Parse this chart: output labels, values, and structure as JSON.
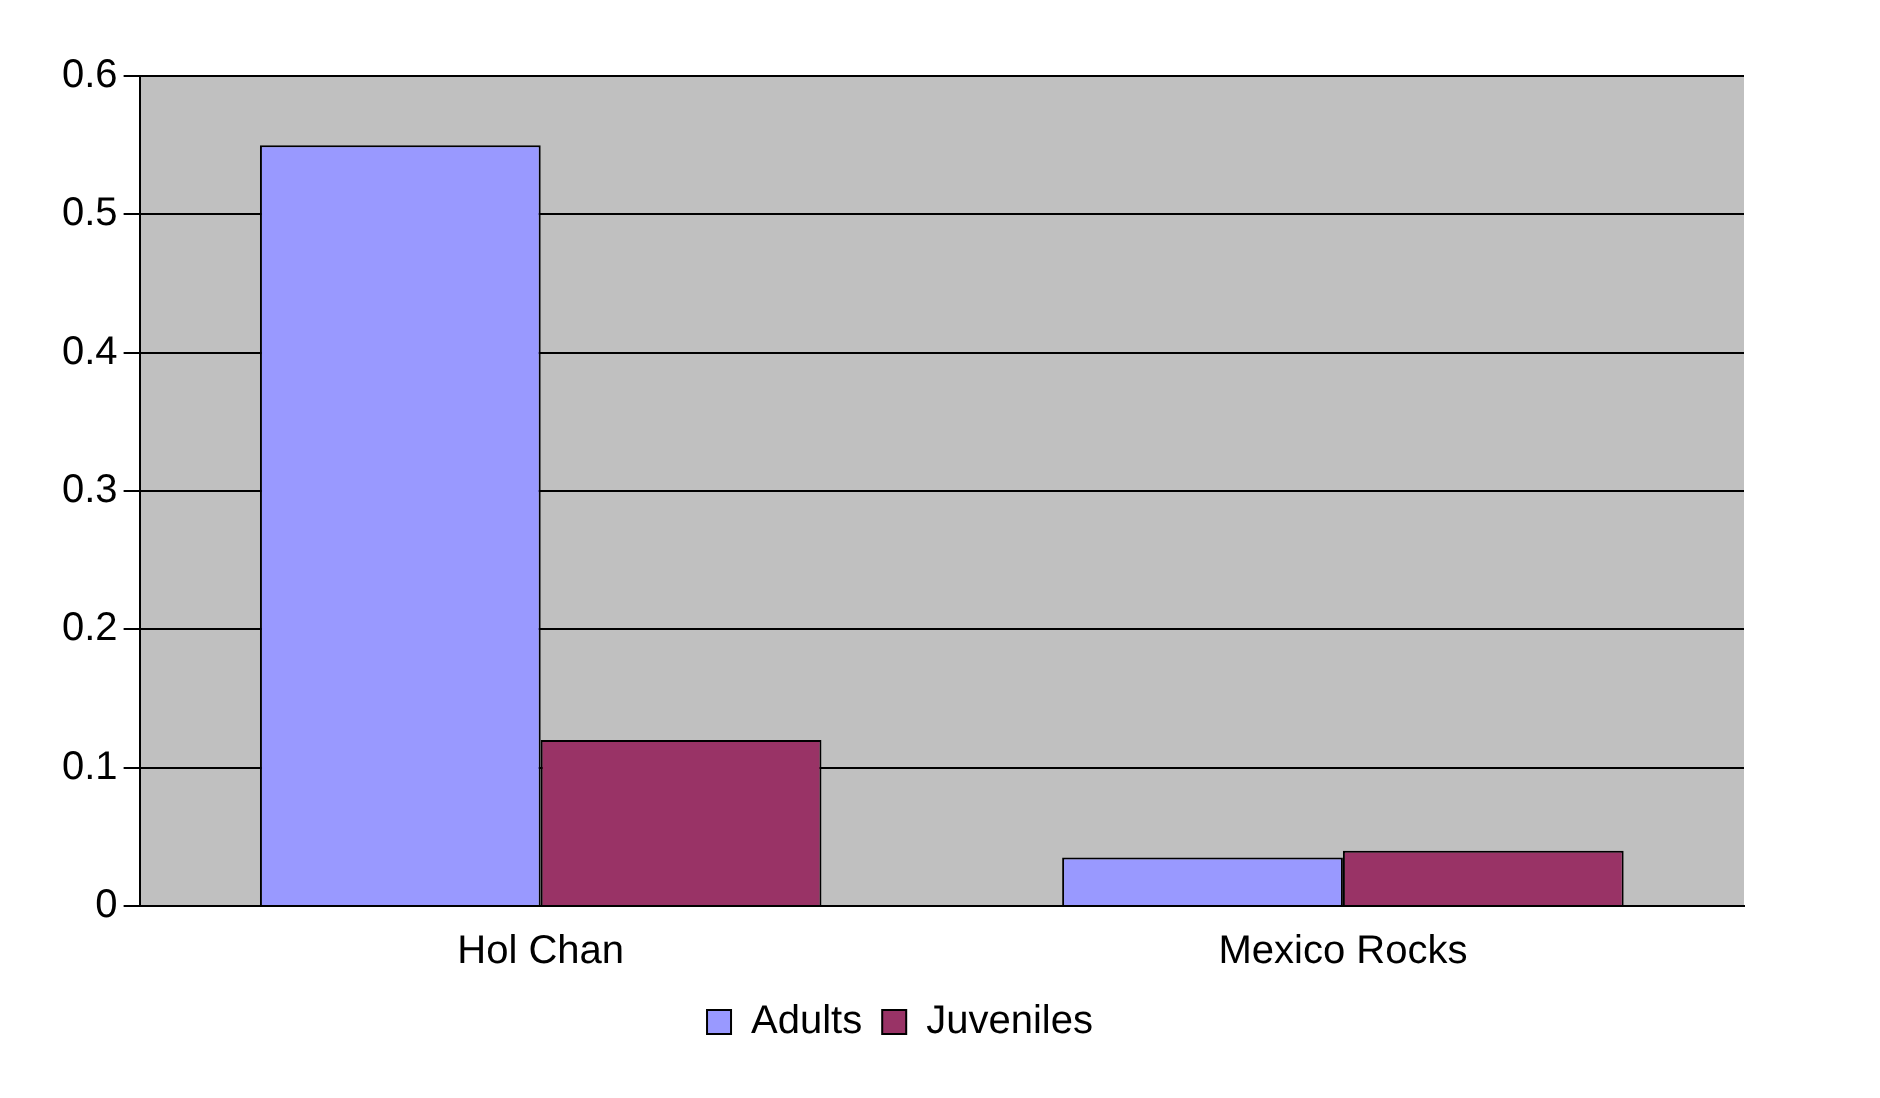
{
  "chart_data": {
    "type": "bar",
    "categories": [
      "Hol Chan",
      "Mexico Rocks"
    ],
    "series": [
      {
        "name": "Adults",
        "color": "#9999ff",
        "values": [
          0.55,
          0.035
        ]
      },
      {
        "name": "Juveniles",
        "color": "#993366",
        "values": [
          0.12,
          0.04
        ]
      }
    ],
    "ylim": [
      0,
      0.6
    ],
    "yticks": [
      0,
      0.1,
      0.2,
      0.3,
      0.4,
      0.5,
      0.6
    ],
    "grid": "y",
    "legend": "bottom"
  }
}
